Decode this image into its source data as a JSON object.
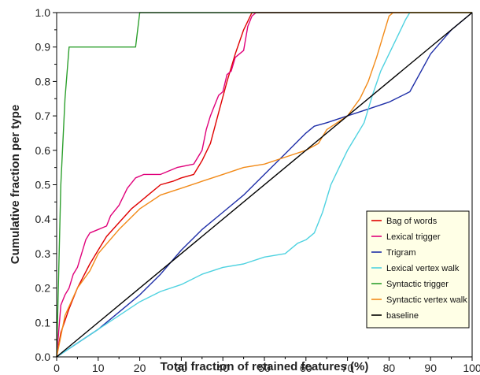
{
  "chart_data": {
    "type": "line",
    "title": "",
    "xlabel": "Total fraction of retained features (%)",
    "ylabel": "Cumulative fraction per type",
    "xlim": [
      0,
      100
    ],
    "ylim": [
      0,
      1.0
    ],
    "x_ticks": [
      "0",
      "10",
      "20",
      "30",
      "40",
      "50",
      "60",
      "70",
      "80",
      "90",
      "100"
    ],
    "y_ticks": [
      "0.0",
      "0.1",
      "0.2",
      "0.3",
      "0.4",
      "0.5",
      "0.6",
      "0.7",
      "0.8",
      "0.9",
      "1.0"
    ],
    "grid": false,
    "legend_position": "bottom-right",
    "legend_background": "#ffffe6",
    "series": [
      {
        "name": "Bag of words",
        "color": "#e00000",
        "points": [
          [
            0,
            0
          ],
          [
            1,
            0.07
          ],
          [
            3,
            0.14
          ],
          [
            5,
            0.2
          ],
          [
            8,
            0.27
          ],
          [
            10,
            0.31
          ],
          [
            12,
            0.35
          ],
          [
            15,
            0.39
          ],
          [
            18,
            0.43
          ],
          [
            20,
            0.45
          ],
          [
            22,
            0.47
          ],
          [
            25,
            0.5
          ],
          [
            28,
            0.51
          ],
          [
            30,
            0.52
          ],
          [
            33,
            0.53
          ],
          [
            35,
            0.57
          ],
          [
            37,
            0.62
          ],
          [
            39,
            0.71
          ],
          [
            41,
            0.8
          ],
          [
            43,
            0.88
          ],
          [
            45,
            0.95
          ],
          [
            47,
            1.0
          ],
          [
            100,
            1.0
          ]
        ]
      },
      {
        "name": "Lexical trigger",
        "color": "#e0007a",
        "points": [
          [
            0,
            0
          ],
          [
            1,
            0.15
          ],
          [
            2,
            0.18
          ],
          [
            3,
            0.2
          ],
          [
            4,
            0.24
          ],
          [
            5,
            0.26
          ],
          [
            6,
            0.3
          ],
          [
            7,
            0.34
          ],
          [
            8,
            0.36
          ],
          [
            10,
            0.37
          ],
          [
            12,
            0.38
          ],
          [
            13,
            0.41
          ],
          [
            15,
            0.44
          ],
          [
            17,
            0.49
          ],
          [
            19,
            0.52
          ],
          [
            21,
            0.53
          ],
          [
            25,
            0.53
          ],
          [
            29,
            0.55
          ],
          [
            33,
            0.56
          ],
          [
            35,
            0.6
          ],
          [
            36,
            0.66
          ],
          [
            37,
            0.7
          ],
          [
            38,
            0.73
          ],
          [
            39,
            0.76
          ],
          [
            40,
            0.77
          ],
          [
            41,
            0.82
          ],
          [
            42,
            0.83
          ],
          [
            43,
            0.87
          ],
          [
            45,
            0.89
          ],
          [
            46,
            0.96
          ],
          [
            47,
            0.99
          ],
          [
            48,
            1.0
          ],
          [
            100,
            1.0
          ]
        ]
      },
      {
        "name": "Trigram",
        "color": "#1f2fa8",
        "points": [
          [
            0,
            0
          ],
          [
            5,
            0.04
          ],
          [
            10,
            0.08
          ],
          [
            15,
            0.13
          ],
          [
            20,
            0.18
          ],
          [
            25,
            0.24
          ],
          [
            30,
            0.31
          ],
          [
            35,
            0.37
          ],
          [
            40,
            0.42
          ],
          [
            45,
            0.47
          ],
          [
            50,
            0.53
          ],
          [
            55,
            0.59
          ],
          [
            60,
            0.65
          ],
          [
            62,
            0.67
          ],
          [
            65,
            0.68
          ],
          [
            70,
            0.7
          ],
          [
            75,
            0.72
          ],
          [
            80,
            0.74
          ],
          [
            85,
            0.77
          ],
          [
            90,
            0.88
          ],
          [
            95,
            0.95
          ],
          [
            100,
            1.0
          ]
        ]
      },
      {
        "name": "Lexical vertex walk",
        "color": "#4fd2e0",
        "points": [
          [
            0,
            0
          ],
          [
            5,
            0.04
          ],
          [
            10,
            0.08
          ],
          [
            15,
            0.12
          ],
          [
            20,
            0.16
          ],
          [
            25,
            0.19
          ],
          [
            30,
            0.21
          ],
          [
            35,
            0.24
          ],
          [
            40,
            0.26
          ],
          [
            45,
            0.27
          ],
          [
            50,
            0.29
          ],
          [
            55,
            0.3
          ],
          [
            58,
            0.33
          ],
          [
            60,
            0.34
          ],
          [
            62,
            0.36
          ],
          [
            64,
            0.42
          ],
          [
            66,
            0.5
          ],
          [
            68,
            0.55
          ],
          [
            70,
            0.6
          ],
          [
            72,
            0.64
          ],
          [
            74,
            0.68
          ],
          [
            76,
            0.76
          ],
          [
            78,
            0.83
          ],
          [
            80,
            0.88
          ],
          [
            82,
            0.93
          ],
          [
            84,
            0.98
          ],
          [
            85,
            1.0
          ],
          [
            100,
            1.0
          ]
        ]
      },
      {
        "name": "Syntactic trigger",
        "color": "#2ea02e",
        "points": [
          [
            0,
            0
          ],
          [
            1,
            0.5
          ],
          [
            2,
            0.75
          ],
          [
            3,
            0.9
          ],
          [
            19,
            0.9
          ],
          [
            20,
            1.0
          ],
          [
            100,
            1.0
          ]
        ]
      },
      {
        "name": "Syntactic vertex walk",
        "color": "#f28a18",
        "points": [
          [
            0,
            0
          ],
          [
            2,
            0.12
          ],
          [
            5,
            0.2
          ],
          [
            8,
            0.25
          ],
          [
            10,
            0.3
          ],
          [
            15,
            0.37
          ],
          [
            20,
            0.43
          ],
          [
            25,
            0.47
          ],
          [
            30,
            0.49
          ],
          [
            35,
            0.51
          ],
          [
            40,
            0.53
          ],
          [
            45,
            0.55
          ],
          [
            50,
            0.56
          ],
          [
            55,
            0.58
          ],
          [
            60,
            0.6
          ],
          [
            63,
            0.62
          ],
          [
            65,
            0.66
          ],
          [
            70,
            0.7
          ],
          [
            73,
            0.75
          ],
          [
            75,
            0.8
          ],
          [
            77,
            0.87
          ],
          [
            79,
            0.95
          ],
          [
            80,
            0.99
          ],
          [
            81,
            1.0
          ],
          [
            100,
            1.0
          ]
        ]
      },
      {
        "name": "baseline",
        "color": "#000000",
        "points": [
          [
            0,
            0
          ],
          [
            100,
            1.0
          ]
        ]
      }
    ]
  }
}
